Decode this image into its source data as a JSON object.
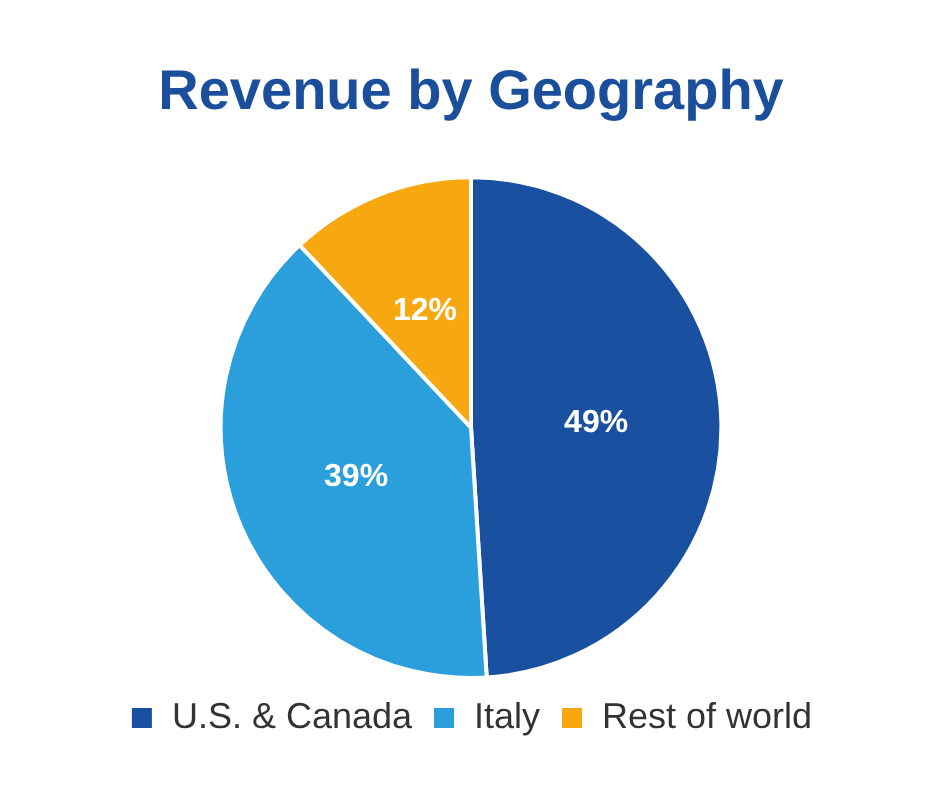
{
  "chart_data": {
    "type": "pie",
    "title": "Revenue by Geography",
    "categories": [
      "U.S. & Canada",
      "Italy",
      "Rest of world"
    ],
    "values": [
      49,
      39,
      12
    ],
    "colors": [
      "#1a50a0",
      "#2a9fdc",
      "#f7a70f"
    ],
    "value_labels": [
      "49%",
      "39%",
      "12%"
    ],
    "legend": "bottom"
  }
}
